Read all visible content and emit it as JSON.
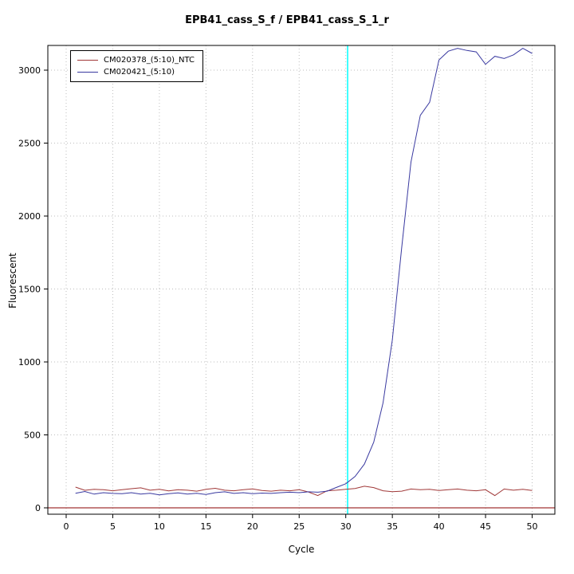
{
  "chart_data": {
    "type": "line",
    "title": "EPB41_cass_S_f / EPB41_cass_S_1_r",
    "xlabel": "Cycle",
    "ylabel": "Fluorescent",
    "xlim": [
      0,
      50
    ],
    "ylim": [
      0,
      3200
    ],
    "xticks": [
      0,
      5,
      10,
      15,
      20,
      25,
      30,
      35,
      40,
      45,
      50
    ],
    "yticks": [
      0,
      500,
      1000,
      1500,
      2000,
      2500,
      3000
    ],
    "grid": "dotted",
    "grid_color": "#bdbdbd",
    "legend_position": "top-left",
    "threshold_line": {
      "x": 30.2,
      "color": "#00ffff"
    },
    "baseline": {
      "y": 0,
      "color": "#8b0000"
    },
    "x": [
      1,
      2,
      3,
      4,
      5,
      6,
      7,
      8,
      9,
      10,
      11,
      12,
      13,
      14,
      15,
      16,
      17,
      18,
      19,
      20,
      21,
      22,
      23,
      24,
      25,
      26,
      27,
      28,
      29,
      30,
      31,
      32,
      33,
      34,
      35,
      36,
      37,
      38,
      39,
      40,
      41,
      42,
      43,
      44,
      45,
      46,
      47,
      48,
      49,
      50
    ],
    "series": [
      {
        "name": "CM020378_(5:10)_NTC",
        "color": "#a03838",
        "values": [
          142,
          120,
          127,
          124,
          117,
          124,
          131,
          137,
          121,
          127,
          116,
          124,
          121,
          114,
          127,
          134,
          121,
          117,
          124,
          130,
          119,
          114,
          121,
          117,
          124,
          109,
          84,
          117,
          121,
          127,
          133,
          148,
          139,
          117,
          111,
          114,
          129,
          124,
          127,
          119,
          124,
          129,
          121,
          117,
          124,
          84,
          129,
          121,
          127,
          119
        ]
      },
      {
        "name": "CM020421_(5:10)",
        "color": "#3939a0",
        "values": [
          100,
          112,
          94,
          104,
          99,
          97,
          104,
          94,
          100,
          89,
          97,
          102,
          94,
          100,
          91,
          104,
          110,
          99,
          104,
          97,
          101,
          99,
          104,
          107,
          104,
          110,
          107,
          114,
          140,
          165,
          215,
          300,
          450,
          720,
          1150,
          1780,
          2370,
          2690,
          2780,
          3070,
          3130,
          3150,
          3135,
          3125,
          3040,
          3095,
          3080,
          3105,
          3150,
          3115
        ]
      }
    ]
  }
}
